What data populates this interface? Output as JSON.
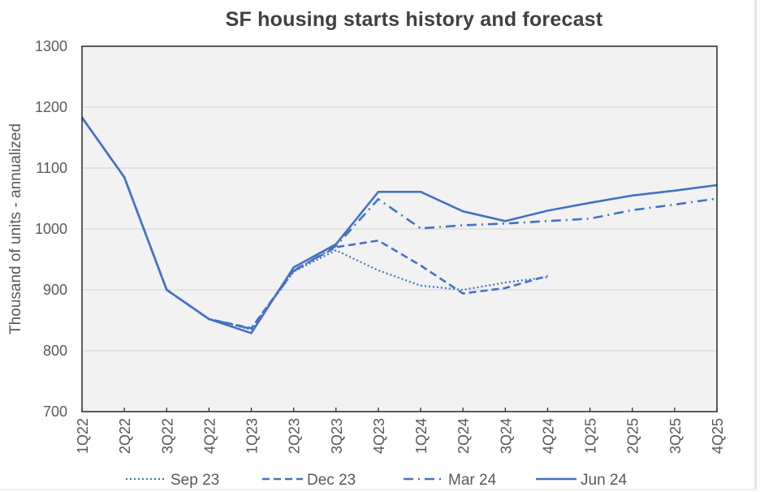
{
  "chart_data": {
    "type": "line",
    "title": "SF housing starts history and forecast",
    "xlabel": "",
    "ylabel": "Thousand  of units - annualized",
    "ylim": [
      700,
      1300
    ],
    "yticks": [
      700,
      800,
      900,
      1000,
      1100,
      1200,
      1300
    ],
    "grid": true,
    "legend_position": "bottom",
    "categories": [
      "1Q22",
      "2Q22",
      "3Q22",
      "4Q22",
      "1Q23",
      "2Q23",
      "3Q23",
      "4Q23",
      "1Q24",
      "2Q24",
      "3Q24",
      "4Q24",
      "1Q25",
      "2Q25",
      "3Q25",
      "4Q25"
    ],
    "series": [
      {
        "name": "Sep 23",
        "style": "dotted",
        "color": "#4472c4",
        "values": [
          1183,
          1085,
          900,
          852,
          835,
          930,
          965,
          932,
          907,
          900,
          912,
          921,
          null,
          null,
          null,
          null
        ]
      },
      {
        "name": "Dec 23",
        "style": "dashed",
        "color": "#4472c4",
        "values": [
          1183,
          1085,
          900,
          852,
          837,
          932,
          970,
          981,
          940,
          894,
          903,
          923,
          null,
          null,
          null,
          null
        ]
      },
      {
        "name": "Mar 24",
        "style": "dashdot",
        "color": "#4472c4",
        "values": [
          1183,
          1085,
          900,
          852,
          836,
          931,
          972,
          1049,
          1001,
          1006,
          1009,
          1013,
          1017,
          1031,
          1040,
          1050
        ]
      },
      {
        "name": "Jun 24",
        "style": "solid",
        "color": "#4472c4",
        "values": [
          1183,
          1085,
          900,
          852,
          829,
          937,
          975,
          1061,
          1061,
          1029,
          1013,
          1030,
          1043,
          1055,
          1063,
          1072
        ]
      }
    ]
  },
  "colors": {
    "series": "#4472c4",
    "plot_background": "#f2f2f2",
    "gridline": "#d9d9d9",
    "text": "#595959",
    "title": "#404040"
  }
}
